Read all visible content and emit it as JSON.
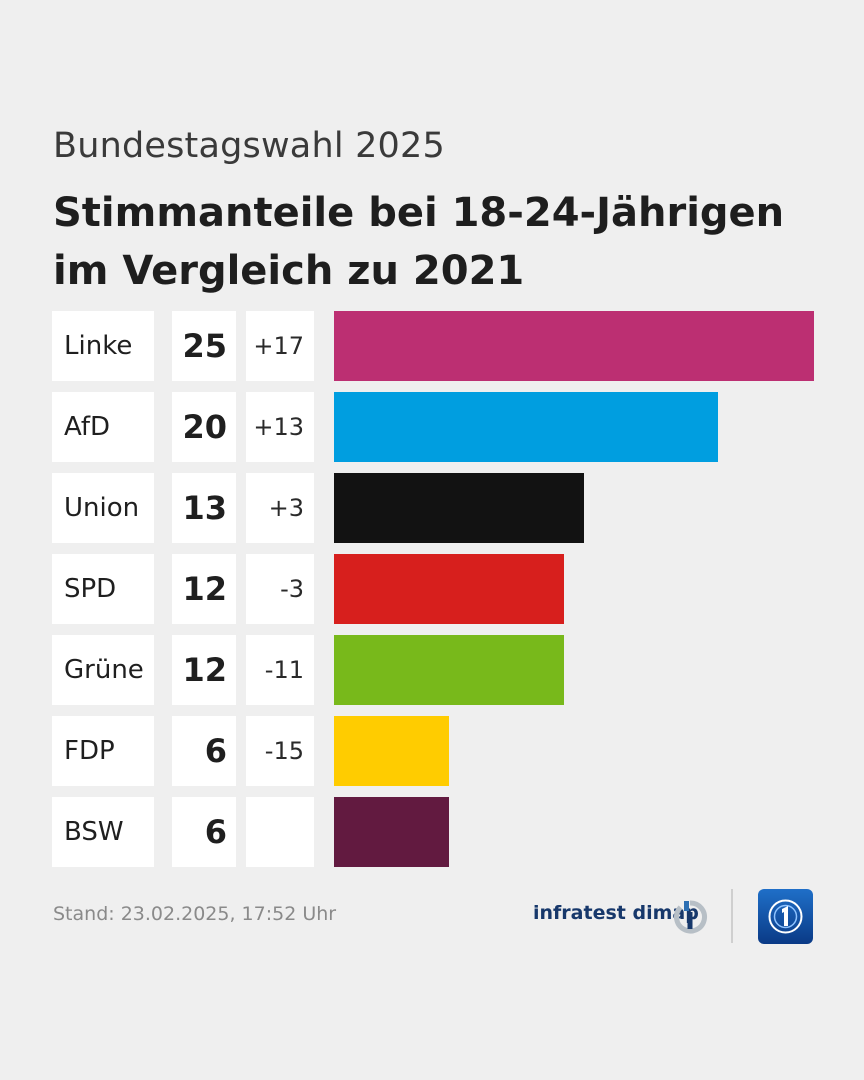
{
  "header": {
    "subtitle": "Bundestagswahl 2025",
    "title_line1": "Stimmanteile bei 18-24-Jährigen",
    "title_line2": "im Vergleich zu 2021"
  },
  "chart_data": {
    "type": "bar",
    "orientation": "horizontal",
    "title": "Stimmanteile bei 18-24-Jährigen im Vergleich zu 2021",
    "subtitle": "Bundestagswahl 2025",
    "categories": [
      "Linke",
      "AfD",
      "Union",
      "SPD",
      "Grüne",
      "FDP",
      "BSW"
    ],
    "values": [
      25,
      20,
      13,
      12,
      12,
      6,
      6
    ],
    "value_labels": [
      "25",
      "20",
      "13",
      "12",
      "12",
      "6",
      "6"
    ],
    "changes": [
      "+17",
      "+13",
      "+3",
      "-3",
      "-11",
      "-15",
      ""
    ],
    "colors": [
      "#bc2f72",
      "#009ee0",
      "#121212",
      "#d71f1d",
      "#78b91b",
      "#ffcc00",
      "#621a40"
    ],
    "xlim": [
      0,
      25
    ],
    "xlabel": "",
    "ylabel": "",
    "grid": false
  },
  "footer": {
    "stand": "Stand:  23.02.2025, 17:52 Uhr",
    "source": "infratest dimap",
    "source_icon": "infratest-dimap-logo",
    "broadcaster_icon": "tagesschau-logo"
  }
}
